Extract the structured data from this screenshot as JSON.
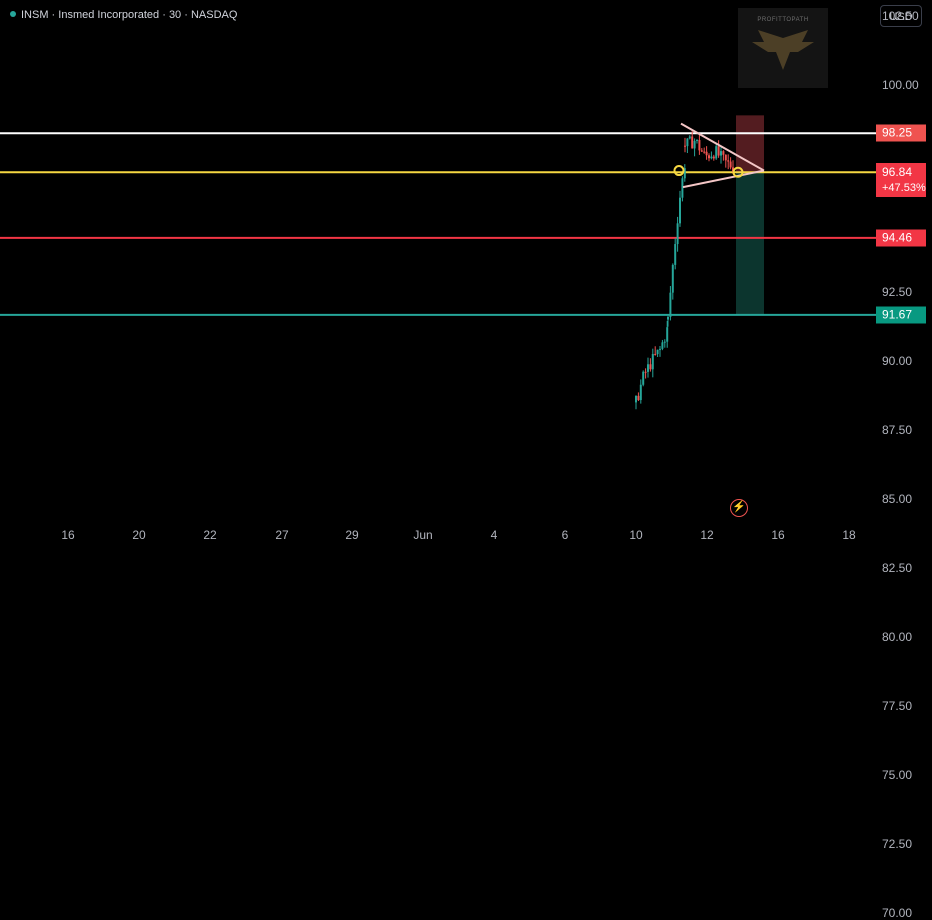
{
  "header": {
    "title": "INSM · Insmed Incorporated · 30 · NASDAQ",
    "currency": "USD"
  },
  "logo": {
    "text": "PROFITTOPATH"
  },
  "y_axis": {
    "ticks": [
      "102.50",
      "100.00",
      "92.50",
      "90.00",
      "87.50",
      "85.00",
      "82.50",
      "80.00",
      "77.50",
      "75.00",
      "72.50",
      "70.00"
    ],
    "tick_values": [
      102.5,
      100,
      92.5,
      90,
      87.5,
      85,
      82.5,
      80,
      77.5,
      75,
      72.5,
      70
    ]
  },
  "x_axis": {
    "labels": [
      "16",
      "20",
      "22",
      "27",
      "29",
      "Jun",
      "4",
      "6",
      "10",
      "12",
      "16",
      "18"
    ]
  },
  "price_labels": {
    "white": {
      "text": "98.25",
      "value": 98.25,
      "color": "#ef5350"
    },
    "current": {
      "text": "96.84",
      "value": 96.84,
      "change": "+47.53%",
      "color": "#f23645"
    },
    "red": {
      "text": "94.46",
      "value": 94.46,
      "color": "#f23645"
    },
    "green": {
      "text": "91.67",
      "value": 91.67,
      "color": "#089981"
    }
  },
  "lines": [
    {
      "name": "white-line",
      "value": 98.25,
      "color": "#ffffff"
    },
    {
      "name": "yellow-line",
      "value": 96.84,
      "color": "#f5d742"
    },
    {
      "name": "red-line",
      "value": 94.46,
      "color": "#f23645"
    },
    {
      "name": "green-line",
      "value": 91.67,
      "color": "#26a69a"
    }
  ],
  "colors": {
    "up": "#26a69a",
    "down": "#ef5350",
    "background": "#000000"
  },
  "icons": {
    "alert": "lightning-icon"
  }
}
